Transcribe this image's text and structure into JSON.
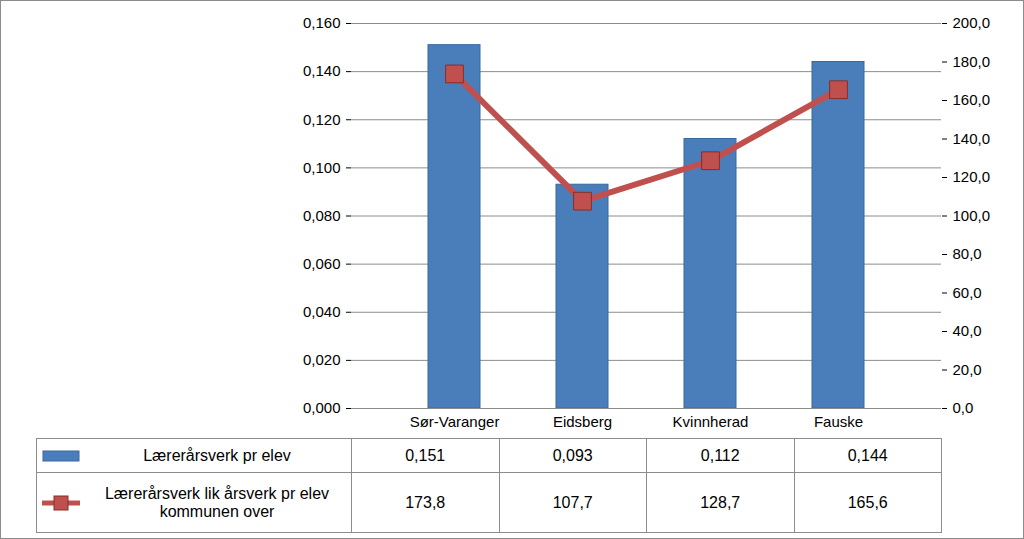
{
  "chart_data": {
    "type": "bar",
    "categories": [
      "Sør-Varanger",
      "Eidsberg",
      "Kvinnherad",
      "Fauske"
    ],
    "series": [
      {
        "name": "Lærerårsverk pr elev",
        "type": "bar",
        "color": "#4a7ebb",
        "axis": "y",
        "values": [
          0.151,
          0.093,
          0.112,
          0.144
        ],
        "value_labels": [
          "0,151",
          "0,093",
          "0,112",
          "0,144"
        ]
      },
      {
        "name": "Lærerårsverk lik årsverk pr elev kommunen over",
        "type": "line",
        "color": "#c0504d",
        "marker": "square",
        "axis": "y2",
        "values": [
          173.8,
          107.7,
          128.7,
          165.6
        ],
        "value_labels": [
          "173,8",
          "107,7",
          "128,7",
          "165,6"
        ]
      }
    ],
    "ylim": [
      0,
      0.16
    ],
    "yticks": [
      {
        "value": 0,
        "label": "0,000"
      },
      {
        "value": 0.02,
        "label": "0,020"
      },
      {
        "value": 0.04,
        "label": "0,040"
      },
      {
        "value": 0.06,
        "label": "0,060"
      },
      {
        "value": 0.08,
        "label": "0,080"
      },
      {
        "value": 0.1,
        "label": "0,100"
      },
      {
        "value": 0.12,
        "label": "0,120"
      },
      {
        "value": 0.14,
        "label": "0,140"
      },
      {
        "value": 0.16,
        "label": "0,160"
      }
    ],
    "y2lim": [
      0,
      200
    ],
    "y2ticks": [
      {
        "value": 0,
        "label": "0,0"
      },
      {
        "value": 20,
        "label": "20,0"
      },
      {
        "value": 40,
        "label": "40,0"
      },
      {
        "value": 60,
        "label": "60,0"
      },
      {
        "value": 80,
        "label": "80,0"
      },
      {
        "value": 100,
        "label": "100,0"
      },
      {
        "value": 120,
        "label": "120,0"
      },
      {
        "value": 140,
        "label": "140,0"
      },
      {
        "value": 160,
        "label": "160,0"
      },
      {
        "value": 180,
        "label": "180,0"
      },
      {
        "value": 200,
        "label": "200,0"
      }
    ],
    "grid": true,
    "legend": "bottom"
  }
}
